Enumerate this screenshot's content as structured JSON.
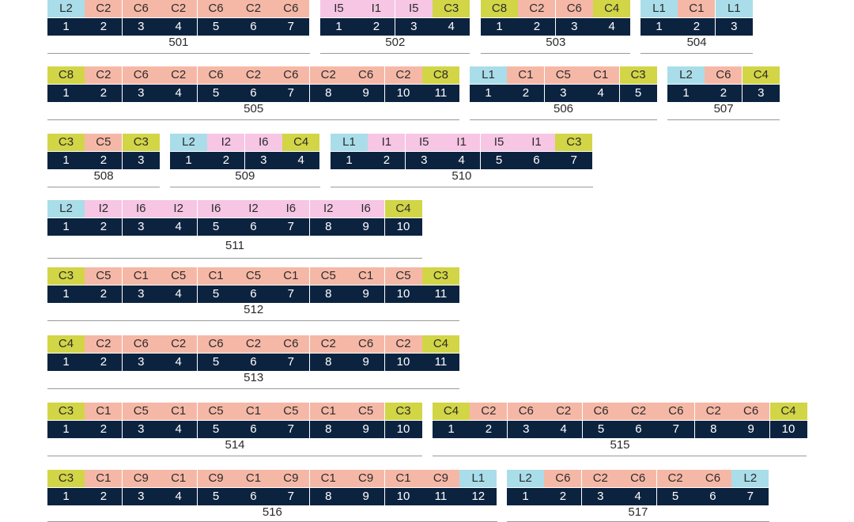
{
  "groups": [
    {
      "id": "501",
      "cells": [
        [
          "L2",
          "L",
          1
        ],
        [
          "C2",
          "C",
          2
        ],
        [
          "C6",
          "C",
          3
        ],
        [
          "C2",
          "C",
          4
        ],
        [
          "C6",
          "C",
          5
        ],
        [
          "C2",
          "C",
          6
        ],
        [
          "C6",
          "C",
          7
        ]
      ]
    },
    {
      "id": "502",
      "cells": [
        [
          "I5",
          "I",
          1
        ],
        [
          "I1",
          "I",
          2
        ],
        [
          "I5",
          "I",
          3
        ],
        [
          "C3",
          "E",
          4
        ]
      ]
    },
    {
      "id": "503",
      "cells": [
        [
          "C8",
          "E",
          1
        ],
        [
          "C2",
          "C",
          2
        ],
        [
          "C6",
          "C",
          3
        ],
        [
          "C4",
          "E",
          4
        ]
      ]
    },
    {
      "id": "504",
      "cells": [
        [
          "L1",
          "L",
          1
        ],
        [
          "C1",
          "C",
          2
        ],
        [
          "L1",
          "L",
          3
        ]
      ]
    },
    {
      "id": "505",
      "cells": [
        [
          "C8",
          "E",
          1
        ],
        [
          "C2",
          "C",
          2
        ],
        [
          "C6",
          "C",
          3
        ],
        [
          "C2",
          "C",
          4
        ],
        [
          "C6",
          "C",
          5
        ],
        [
          "C2",
          "C",
          6
        ],
        [
          "C6",
          "C",
          7
        ],
        [
          "C2",
          "C",
          8
        ],
        [
          "C6",
          "C",
          9
        ],
        [
          "C2",
          "C",
          10
        ],
        [
          "C8",
          "E",
          11
        ]
      ]
    },
    {
      "id": "506",
      "cells": [
        [
          "L1",
          "L",
          1
        ],
        [
          "C1",
          "C",
          2
        ],
        [
          "C5",
          "C",
          3
        ],
        [
          "C1",
          "C",
          4
        ],
        [
          "C3",
          "E",
          5
        ]
      ]
    },
    {
      "id": "507",
      "cells": [
        [
          "L2",
          "L",
          1
        ],
        [
          "C6",
          "C",
          2
        ],
        [
          "C4",
          "E",
          3
        ]
      ]
    },
    {
      "id": "508",
      "cells": [
        [
          "C3",
          "E",
          1
        ],
        [
          "C5",
          "C",
          2
        ],
        [
          "C3",
          "E",
          3
        ]
      ]
    },
    {
      "id": "509",
      "cells": [
        [
          "L2",
          "L",
          1
        ],
        [
          "I2",
          "I",
          2
        ],
        [
          "I6",
          "I",
          3
        ],
        [
          "C4",
          "E",
          4
        ]
      ]
    },
    {
      "id": "510",
      "cells": [
        [
          "L1",
          "L",
          1
        ],
        [
          "I1",
          "I",
          2
        ],
        [
          "I5",
          "I",
          3
        ],
        [
          "I1",
          "I",
          4
        ],
        [
          "I5",
          "I",
          5
        ],
        [
          "I1",
          "I",
          6
        ],
        [
          "C3",
          "E",
          7
        ]
      ]
    },
    {
      "id": "511",
      "cells": [
        [
          "L2",
          "L",
          1
        ],
        [
          "I2",
          "I",
          2
        ],
        [
          "I6",
          "I",
          3
        ],
        [
          "I2",
          "I",
          4
        ],
        [
          "I6",
          "I",
          5
        ],
        [
          "I2",
          "I",
          6
        ],
        [
          "I6",
          "I",
          7
        ],
        [
          "I2",
          "I",
          8
        ],
        [
          "I6",
          "I",
          9
        ],
        [
          "C4",
          "E",
          10
        ]
      ]
    },
    {
      "id": "512",
      "cells": [
        [
          "C3",
          "E",
          1
        ],
        [
          "C5",
          "C",
          2
        ],
        [
          "C1",
          "C",
          3
        ],
        [
          "C5",
          "C",
          4
        ],
        [
          "C1",
          "C",
          5
        ],
        [
          "C5",
          "C",
          6
        ],
        [
          "C1",
          "C",
          7
        ],
        [
          "C5",
          "C",
          8
        ],
        [
          "C1",
          "C",
          9
        ],
        [
          "C5",
          "C",
          10
        ],
        [
          "C3",
          "E",
          11
        ]
      ]
    },
    {
      "id": "513",
      "cells": [
        [
          "C4",
          "E",
          1
        ],
        [
          "C2",
          "C",
          2
        ],
        [
          "C6",
          "C",
          3
        ],
        [
          "C2",
          "C",
          4
        ],
        [
          "C6",
          "C",
          5
        ],
        [
          "C2",
          "C",
          6
        ],
        [
          "C6",
          "C",
          7
        ],
        [
          "C2",
          "C",
          8
        ],
        [
          "C6",
          "C",
          9
        ],
        [
          "C2",
          "C",
          10
        ],
        [
          "C4",
          "E",
          11
        ]
      ]
    },
    {
      "id": "514",
      "cells": [
        [
          "C3",
          "E",
          1
        ],
        [
          "C1",
          "C",
          2
        ],
        [
          "C5",
          "C",
          3
        ],
        [
          "C1",
          "C",
          4
        ],
        [
          "C5",
          "C",
          5
        ],
        [
          "C1",
          "C",
          6
        ],
        [
          "C5",
          "C",
          7
        ],
        [
          "C1",
          "C",
          8
        ],
        [
          "C5",
          "C",
          9
        ],
        [
          "C3",
          "E",
          10
        ]
      ]
    },
    {
      "id": "515",
      "cells": [
        [
          "C4",
          "E",
          1
        ],
        [
          "C2",
          "C",
          2
        ],
        [
          "C6",
          "C",
          3
        ],
        [
          "C2",
          "C",
          4
        ],
        [
          "C6",
          "C",
          5
        ],
        [
          "C2",
          "C",
          6
        ],
        [
          "C6",
          "C",
          7
        ],
        [
          "C2",
          "C",
          8
        ],
        [
          "C6",
          "C",
          9
        ],
        [
          "C4",
          "E",
          10
        ]
      ]
    },
    {
      "id": "516",
      "cells": [
        [
          "C3",
          "E",
          1
        ],
        [
          "C1",
          "C",
          2
        ],
        [
          "C9",
          "C",
          3
        ],
        [
          "C1",
          "C",
          4
        ],
        [
          "C9",
          "C",
          5
        ],
        [
          "C1",
          "C",
          6
        ],
        [
          "C9",
          "C",
          7
        ],
        [
          "C1",
          "C",
          8
        ],
        [
          "C9",
          "C",
          9
        ],
        [
          "C1",
          "C",
          10
        ],
        [
          "C9",
          "C",
          11
        ],
        [
          "L1",
          "L",
          12
        ]
      ]
    },
    {
      "id": "517",
      "cells": [
        [
          "L2",
          "L",
          1
        ],
        [
          "C6",
          "C",
          2
        ],
        [
          "C2",
          "C",
          3
        ],
        [
          "C6",
          "C",
          4
        ],
        [
          "C2",
          "C",
          5
        ],
        [
          "C6",
          "C",
          6
        ],
        [
          "L2",
          "L",
          7
        ]
      ]
    }
  ],
  "colors": {
    "L": "#a9dde9",
    "C": "#f6b8a6",
    "I": "#f6c6e4",
    "E": "#d2d546",
    "number_bar": "#0c2340"
  }
}
